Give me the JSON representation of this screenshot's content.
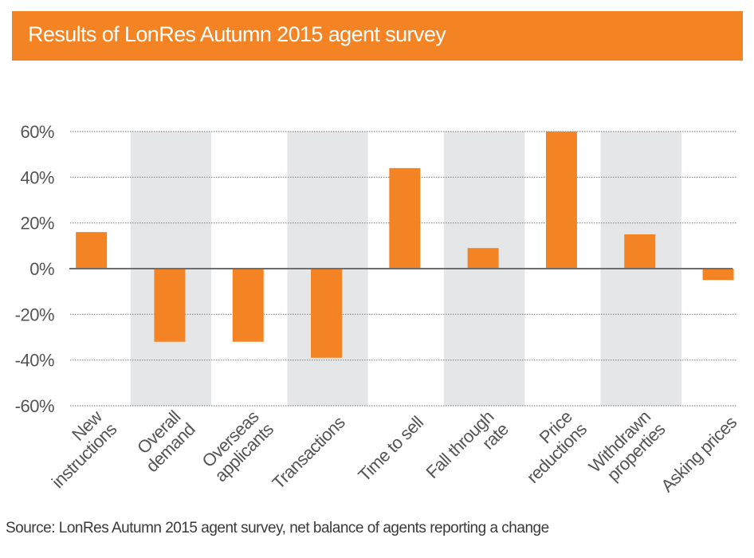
{
  "header": {
    "title": "Results of LonRes Autumn 2015 agent survey"
  },
  "footer": {
    "source": "Source: LonRes Autumn 2015 agent survey, net balance of agents reporting a change"
  },
  "colors": {
    "accent": "#f48423",
    "bar": "#f48423",
    "band": "#e5e6e8",
    "grid": "#8a8a8a",
    "zero_line": "#6e6e6e",
    "text": "#555555"
  },
  "chart_data": {
    "type": "bar",
    "title": "Results of LonRes Autumn 2015 agent survey",
    "xlabel": "",
    "ylabel": "",
    "ylim": [
      -60,
      60
    ],
    "yticks": [
      60,
      40,
      20,
      0,
      -20,
      -40,
      -60
    ],
    "ytick_labels": [
      "60%",
      "40%",
      "20%",
      "0%",
      "-20%",
      "-40%",
      "-60%"
    ],
    "grid": true,
    "legend": "none",
    "categories": [
      [
        "New",
        "instructions"
      ],
      [
        "Overall",
        "demand"
      ],
      [
        "Overseas",
        "applicants"
      ],
      [
        "Transactions"
      ],
      [
        "Time to sell"
      ],
      [
        "Fall through",
        "rate"
      ],
      [
        "Price",
        "reductions"
      ],
      [
        "Withdrawn",
        "properties"
      ],
      [
        "Asking prices"
      ]
    ],
    "values": [
      16,
      -32,
      -32,
      -39,
      44,
      9,
      60,
      15,
      -5
    ],
    "unit": "%",
    "shaded_columns": [
      1,
      3,
      5,
      7
    ],
    "annotation": "Source: LonRes Autumn 2015 agent survey, net balance of agents reporting a change"
  }
}
